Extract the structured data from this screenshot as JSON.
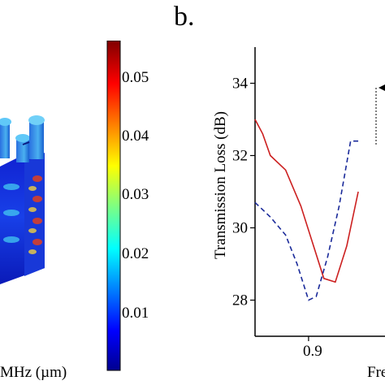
{
  "panel_b_label": "b.",
  "colorbar": {
    "ticks": [
      "0.05",
      "0.04",
      "0.03",
      "0.02",
      "0.01"
    ],
    "caption": "MHz (µm)",
    "colors": [
      "#00008f",
      "#0000ff",
      "#0080ff",
      "#00ffff",
      "#80ff80",
      "#ffff00",
      "#ff8000",
      "#ff0000",
      "#800000"
    ]
  },
  "chart_data": {
    "type": "line",
    "ylabel": "Transmission Loss (dB)",
    "xlabel_partial": "Fre",
    "x_tick_labels": [
      "0.9"
    ],
    "y_tick_labels": [
      "34",
      "32",
      "30",
      "28"
    ],
    "ylim": [
      27,
      35
    ],
    "xlim": [
      0.83,
      1.0
    ],
    "series": [
      {
        "color": "#cc2020",
        "style": "solid",
        "x": [
          0.83,
          0.84,
          0.85,
          0.87,
          0.89,
          0.905,
          0.92,
          0.935,
          0.95,
          0.965
        ],
        "y": [
          33.0,
          32.6,
          32.0,
          31.6,
          30.6,
          29.6,
          28.6,
          28.5,
          29.5,
          31.0
        ]
      },
      {
        "color": "#1a2a9a",
        "style": "dashed",
        "x": [
          0.83,
          0.85,
          0.87,
          0.885,
          0.9,
          0.91,
          0.925,
          0.94,
          0.955,
          0.965
        ],
        "y": [
          30.7,
          30.3,
          29.8,
          29.0,
          28.0,
          28.1,
          29.2,
          30.6,
          32.4,
          32.4
        ]
      }
    ]
  }
}
